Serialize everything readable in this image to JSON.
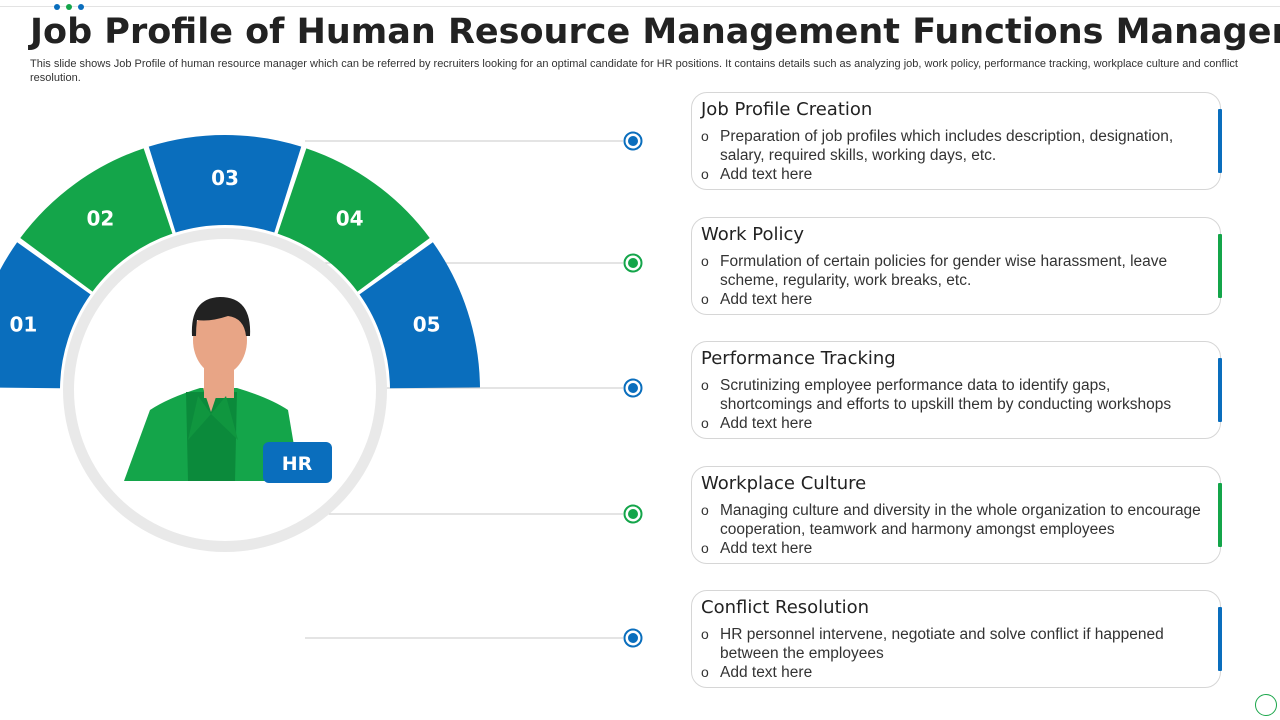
{
  "colors": {
    "blue": "#0a6ebd",
    "green": "#14a54a",
    "dark_green": "#0b8a3b",
    "skin": "#e8a586",
    "hair": "#222222",
    "ring": "#e9e9e9",
    "connector": "#c8c8c8"
  },
  "header": {
    "title": "Job Profile of Human Resource Management Functions Manager",
    "subtitle": "This slide shows Job Profile of human resource manager which can be referred by recruiters looking for an optimal candidate for HR positions. It contains details such as analyzing job, work policy, performance tracking, workplace culture and conflict resolution."
  },
  "avatar": {
    "badge": "HR",
    "icon": "person-icon"
  },
  "segments": [
    {
      "number": "01",
      "color": "blue"
    },
    {
      "number": "02",
      "color": "green"
    },
    {
      "number": "03",
      "color": "blue"
    },
    {
      "number": "04",
      "color": "green"
    },
    {
      "number": "05",
      "color": "blue"
    }
  ],
  "cards": [
    {
      "title": "Job Profile Creation",
      "accent": "blue",
      "points": [
        "Preparation of job profiles which includes description, designation, salary, required skills, working days, etc.",
        "Add text here"
      ]
    },
    {
      "title": "Work Policy",
      "accent": "green",
      "points": [
        "Formulation of certain policies for gender wise harassment, leave scheme, regularity, work breaks, etc.",
        "Add text here"
      ]
    },
    {
      "title": "Performance Tracking",
      "accent": "blue",
      "points": [
        "Scrutinizing employee performance data to identify gaps, shortcomings and efforts to upskill them by conducting workshops",
        "Add text here"
      ]
    },
    {
      "title": "Workplace Culture",
      "accent": "green",
      "points": [
        "Managing culture and diversity in the whole organization to encourage cooperation, teamwork and harmony amongst employees",
        "Add text here"
      ]
    },
    {
      "title": "Conflict Resolution",
      "accent": "blue",
      "points": [
        "HR personnel intervene, negotiate and solve conflict if happened between the employees",
        "Add text here"
      ]
    }
  ],
  "bullet_glyph": "o"
}
